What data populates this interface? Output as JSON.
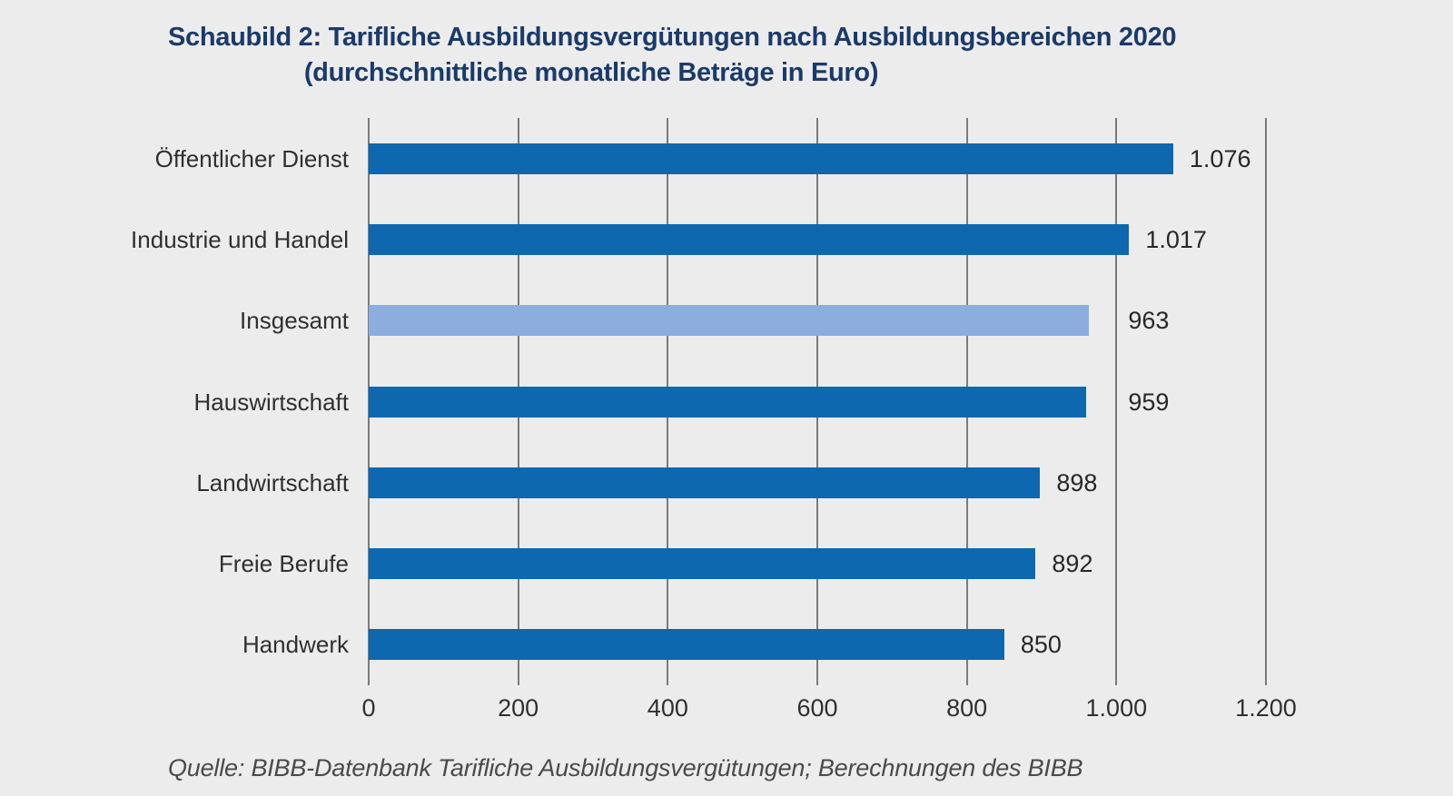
{
  "title": {
    "line1": "Schaubild 2: Tarifliche Ausbildungsvergütungen nach Ausbildungsbereichen 2020",
    "line2": "(durchschnittliche monatliche Beträge in Euro)"
  },
  "source": "Quelle: BIBB-Datenbank Tarifliche Ausbildungsvergütungen; Berechnungen des BIBB",
  "colors": {
    "background": "#ececec",
    "bar_primary": "#0e68b0",
    "bar_highlight": "#8cadde",
    "gridline": "#7b7b7b",
    "title_text": "#1a3a6b",
    "label_text": "#303030"
  },
  "chart_data": {
    "type": "bar",
    "orientation": "horizontal",
    "title": "Schaubild 2: Tarifliche Ausbildungsvergütungen nach Ausbildungsbereichen 2020",
    "subtitle": "(durchschnittliche monatliche Beträge in Euro)",
    "categories": [
      "Öffentlicher Dienst",
      "Industrie und Handel",
      "Insgesamt",
      "Hauswirtschaft",
      "Landwirtschaft",
      "Freie Berufe",
      "Handwerk"
    ],
    "values": [
      1076,
      1017,
      963,
      959,
      898,
      892,
      850
    ],
    "value_labels": [
      "1.076",
      "1.017",
      "963",
      "959",
      "898",
      "892",
      "850"
    ],
    "highlight_category": "Insgesamt",
    "xlabel": "",
    "ylabel": "",
    "xlim": [
      0,
      1200
    ],
    "x_ticks": [
      0,
      200,
      400,
      600,
      800,
      1000,
      1200
    ],
    "x_tick_labels": [
      "0",
      "200",
      "400",
      "600",
      "800",
      "1.000",
      "1.200"
    ],
    "grid": true,
    "legend": false
  }
}
